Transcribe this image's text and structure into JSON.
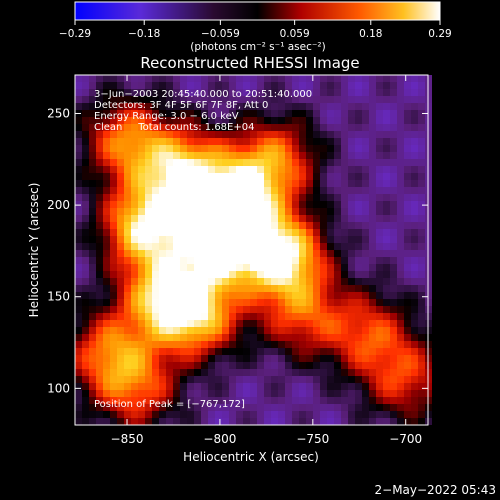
{
  "chart_data": {
    "type": "heatmap",
    "title": "Reconstructed RHESSI Image",
    "xlabel": "Heliocentric X (arcsec)",
    "ylabel": "Heliocentric Y (arcsec)",
    "xlim": [
      -878,
      -688
    ],
    "ylim": [
      80,
      271
    ],
    "xticks": [
      -850,
      -800,
      -750,
      -700
    ],
    "xtick_labels": [
      "−850",
      "−800",
      "−750",
      "−700"
    ],
    "yticks": [
      100,
      150,
      200,
      250
    ],
    "ytick_labels": [
      "100",
      "150",
      "200",
      "250"
    ],
    "colorbar": {
      "min": -0.29,
      "max": 0.29,
      "ticks": [
        -0.29,
        -0.18,
        -0.059,
        0.059,
        0.18,
        0.29
      ],
      "tick_labels": [
        "−0.29",
        "−0.18",
        "−0.059",
        "0.059",
        "0.18",
        "0.29"
      ],
      "unit_label": "(photons cm⁻² s⁻¹ asec⁻²)"
    },
    "annotations": {
      "time_range": "3−Jun−2003 20:45:40.000 to 20:51:40.000",
      "detectors": "Detectors: 3F 4F 5F 6F 7F 8F, Att 0",
      "energy": "Energy Range: 3.0 − 6.0 keV",
      "clean": "Clean     Total counts: 1.68E+04",
      "peak": "Position of Peak = [−767,172]"
    },
    "peak_position": [
      -767,
      172
    ],
    "sources": [
      {
        "x": -800,
        "y": 180,
        "value": 0.29
      },
      {
        "x": -840,
        "y": 188,
        "value": 0.25
      },
      {
        "x": -820,
        "y": 218,
        "value": 0.22
      },
      {
        "x": -767,
        "y": 172,
        "value": 0.29
      },
      {
        "x": -790,
        "y": 205,
        "value": 0.2
      },
      {
        "x": -830,
        "y": 150,
        "value": 0.18
      },
      {
        "x": -812,
        "y": 140,
        "value": 0.17
      },
      {
        "x": -850,
        "y": 235,
        "value": 0.12
      },
      {
        "x": -860,
        "y": 120,
        "value": 0.09
      },
      {
        "x": -845,
        "y": 100,
        "value": 0.07
      },
      {
        "x": -770,
        "y": 225,
        "value": 0.1
      },
      {
        "x": -755,
        "y": 140,
        "value": 0.06
      },
      {
        "x": -720,
        "y": 130,
        "value": 0.06
      },
      {
        "x": -700,
        "y": 105,
        "value": 0.05
      }
    ],
    "colormap": [
      "#0000ff",
      "#6a2bd0",
      "#5a1f7a",
      "#000000",
      "#a00000",
      "#ff3000",
      "#ff9000",
      "#ffd020",
      "#ffffff"
    ]
  },
  "footer": {
    "datetime": "2−May−2022 05:43"
  }
}
